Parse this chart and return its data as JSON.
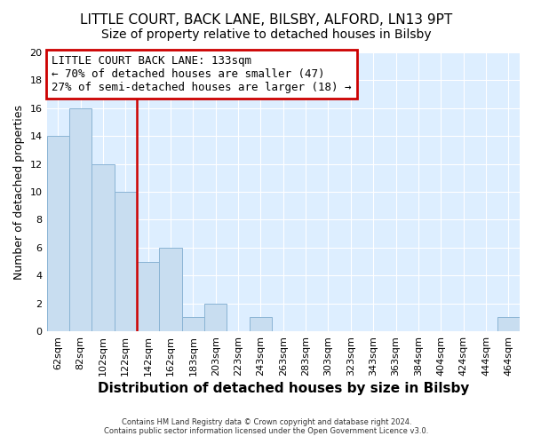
{
  "title": "LITTLE COURT, BACK LANE, BILSBY, ALFORD, LN13 9PT",
  "subtitle": "Size of property relative to detached houses in Bilsby",
  "xlabel": "Distribution of detached houses by size in Bilsby",
  "ylabel": "Number of detached properties",
  "categories": [
    "62sqm",
    "82sqm",
    "102sqm",
    "122sqm",
    "142sqm",
    "162sqm",
    "183sqm",
    "203sqm",
    "223sqm",
    "243sqm",
    "263sqm",
    "283sqm",
    "303sqm",
    "323sqm",
    "343sqm",
    "363sqm",
    "384sqm",
    "404sqm",
    "424sqm",
    "444sqm",
    "464sqm"
  ],
  "values": [
    14,
    16,
    12,
    10,
    5,
    6,
    1,
    2,
    0,
    1,
    0,
    0,
    0,
    0,
    0,
    0,
    0,
    0,
    0,
    0,
    1
  ],
  "bar_color": "#c8ddf0",
  "bar_edge_color": "#8ab4d4",
  "annotation_line0": "LITTLE COURT BACK LANE: 133sqm",
  "annotation_line1": "← 70% of detached houses are smaller (47)",
  "annotation_line2": "27% of semi-detached houses are larger (18) →",
  "annotation_box_color": "#cc0000",
  "vline_color": "#cc0000",
  "ylim": [
    0,
    20
  ],
  "yticks": [
    0,
    2,
    4,
    6,
    8,
    10,
    12,
    14,
    16,
    18,
    20
  ],
  "footnote1": "Contains HM Land Registry data © Crown copyright and database right 2024.",
  "footnote2": "Contains public sector information licensed under the Open Government Licence v3.0.",
  "fig_bg_color": "#ffffff",
  "plot_bg_color": "#ddeeff",
  "grid_color": "#ffffff",
  "title_fontsize": 11,
  "subtitle_fontsize": 10,
  "xlabel_fontsize": 11,
  "ylabel_fontsize": 9,
  "annot_fontsize": 9,
  "tick_fontsize": 8
}
